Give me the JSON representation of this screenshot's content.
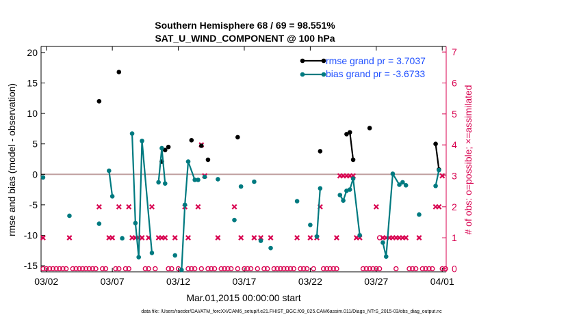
{
  "chart_data": {
    "type": "line",
    "title": "Southern Hemisphere 68 / 69 = 98.551%",
    "subtitle": "SAT_U_WIND_COMPONENT @ 100 hPa",
    "xlabel": "Mar.01,2015 00:00:00 start",
    "ylabel": "rmse and bias (model - observation)",
    "y2label": "# of obs: o=possible; ×=assimilated",
    "footer": "data file: /Users/raeder/DAI/ATM_forcXX/CAM6_setup/f.e21.FHIST_BGC.f09_025.CAM6assim.011/Diags_NTrS_2015-03/obs_diag_output.nc",
    "x_tick_labels": [
      "03/02",
      "03/07",
      "03/12",
      "03/17",
      "03/22",
      "03/27",
      "04/01"
    ],
    "x_tick_days": [
      1,
      6,
      11,
      16,
      21,
      26,
      31
    ],
    "xlim": [
      0.6,
      31.3
    ],
    "ylim": [
      -16,
      21
    ],
    "y_ticks": [
      -15,
      -10,
      -5,
      0,
      5,
      10,
      15,
      20
    ],
    "y2lim": [
      -0.1,
      7.18
    ],
    "y2_ticks": [
      0,
      1,
      2,
      3,
      4,
      5,
      6,
      7
    ],
    "grid": false,
    "legend_position": "top-right",
    "zero_line": 0,
    "colors": {
      "rmse": "#000000",
      "bias": "#007a80",
      "obs": "#d8004f",
      "zero_line": "#c0a0a0",
      "legend_text": "#1f4fff"
    },
    "series": [
      {
        "name": "rmse grand pr = 3.7037",
        "role": "rmse",
        "points": [
          [
            5.0,
            12.0
          ],
          [
            6.5,
            16.8
          ],
          [
            9.75,
            2.1
          ],
          [
            10.0,
            4.0
          ],
          [
            10.25,
            4.5
          ],
          [
            12.0,
            5.6
          ],
          [
            12.75,
            4.7
          ],
          [
            13.25,
            2.4
          ],
          [
            15.5,
            6.1
          ],
          [
            21.75,
            3.8
          ],
          [
            23.75,
            6.6
          ],
          [
            24.0,
            6.9
          ],
          [
            24.25,
            2.4
          ],
          [
            25.5,
            7.6
          ],
          [
            30.5,
            5.0
          ],
          [
            30.75,
            0.8
          ]
        ],
        "segments": [
          [
            [
              23.75,
              6.6
            ],
            [
              24.0,
              6.9
            ],
            [
              24.25,
              2.4
            ]
          ],
          [
            [
              30.5,
              5.0
            ],
            [
              30.75,
              0.8
            ]
          ]
        ]
      },
      {
        "name": "bias grand pr = -3.6733",
        "role": "bias",
        "points": [
          [
            0.75,
            -0.5
          ],
          [
            2.75,
            -6.8
          ],
          [
            5.0,
            -8.1
          ],
          [
            5.75,
            0.6
          ],
          [
            6.0,
            -3.6
          ],
          [
            6.75,
            -10.5
          ],
          [
            7.5,
            6.7
          ],
          [
            7.75,
            -8.0
          ],
          [
            8.0,
            -13.6
          ],
          [
            8.25,
            5.5
          ],
          [
            9.0,
            -12.9
          ],
          [
            9.5,
            -1.3
          ],
          [
            9.75,
            4.3
          ],
          [
            10.0,
            -1.5
          ],
          [
            10.75,
            -13.3
          ],
          [
            11.25,
            -15.7
          ],
          [
            11.5,
            -5.0
          ],
          [
            11.75,
            2.1
          ],
          [
            12.25,
            -0.9
          ],
          [
            12.5,
            -0.9
          ],
          [
            13.0,
            -0.4
          ],
          [
            14.0,
            -0.8
          ],
          [
            15.25,
            -7.5
          ],
          [
            15.75,
            -2.0
          ],
          [
            16.75,
            -1.2
          ],
          [
            17.25,
            -10.9
          ],
          [
            18.0,
            -12.1
          ],
          [
            20.0,
            -4.4
          ],
          [
            21.0,
            -8.3
          ],
          [
            21.5,
            -10.2
          ],
          [
            21.75,
            -2.3
          ],
          [
            23.25,
            -3.4
          ],
          [
            23.5,
            -4.3
          ],
          [
            23.75,
            -2.7
          ],
          [
            24.0,
            -2.5
          ],
          [
            24.25,
            -0.7
          ],
          [
            24.75,
            -10.0
          ],
          [
            26.5,
            -11.2
          ],
          [
            26.75,
            -13.5
          ],
          [
            27.25,
            0.1
          ],
          [
            27.75,
            -1.7
          ],
          [
            28.0,
            -1.3
          ],
          [
            28.25,
            -1.8
          ],
          [
            29.25,
            -6.6
          ],
          [
            30.5,
            -1.9
          ],
          [
            30.75,
            0.7
          ]
        ],
        "segments": [
          [
            [
              5.75,
              0.6
            ],
            [
              6.0,
              -3.6
            ]
          ],
          [
            [
              7.5,
              6.7
            ],
            [
              7.75,
              -8.0
            ],
            [
              8.0,
              -13.6
            ],
            [
              8.25,
              5.5
            ],
            [
              9.0,
              -12.9
            ]
          ],
          [
            [
              9.5,
              -1.3
            ],
            [
              9.75,
              4.3
            ],
            [
              10.0,
              -1.5
            ]
          ],
          [
            [
              11.25,
              -15.7
            ],
            [
              11.5,
              -5.0
            ],
            [
              11.75,
              2.1
            ],
            [
              12.25,
              -0.9
            ],
            [
              12.5,
              -0.9
            ]
          ],
          [
            [
              21.5,
              -10.2
            ],
            [
              21.75,
              -2.3
            ]
          ],
          [
            [
              23.25,
              -3.4
            ],
            [
              23.5,
              -4.3
            ],
            [
              23.75,
              -2.7
            ],
            [
              24.0,
              -2.5
            ],
            [
              24.25,
              -0.7
            ],
            [
              24.75,
              -10.0
            ]
          ],
          [
            [
              26.5,
              -11.2
            ],
            [
              26.75,
              -13.5
            ],
            [
              27.25,
              0.1
            ],
            [
              27.75,
              -1.7
            ],
            [
              28.0,
              -1.3
            ],
            [
              28.25,
              -1.8
            ]
          ],
          [
            [
              30.5,
              -1.9
            ],
            [
              30.75,
              0.7
            ]
          ]
        ]
      }
    ],
    "obs_possible": [
      [
        0.75,
        0
      ],
      [
        1.0,
        0
      ],
      [
        1.25,
        0
      ],
      [
        1.5,
        0
      ],
      [
        1.75,
        0
      ],
      [
        2.0,
        0
      ],
      [
        2.25,
        0
      ],
      [
        2.5,
        0
      ],
      [
        3.0,
        0
      ],
      [
        3.25,
        0
      ],
      [
        3.5,
        0
      ],
      [
        3.75,
        0
      ],
      [
        4.0,
        0
      ],
      [
        4.25,
        0
      ],
      [
        4.5,
        0
      ],
      [
        4.75,
        0
      ],
      [
        5.25,
        0
      ],
      [
        5.5,
        0
      ],
      [
        6.25,
        0
      ],
      [
        6.5,
        0
      ],
      [
        7.0,
        0
      ],
      [
        7.25,
        0
      ],
      [
        8.5,
        0
      ],
      [
        8.75,
        0
      ],
      [
        9.25,
        0
      ],
      [
        10.25,
        0
      ],
      [
        10.5,
        0
      ],
      [
        11.0,
        0
      ],
      [
        11.75,
        0
      ],
      [
        12.0,
        0
      ],
      [
        12.25,
        0
      ],
      [
        12.75,
        0
      ],
      [
        13.25,
        0
      ],
      [
        13.5,
        0
      ],
      [
        13.75,
        0
      ],
      [
        14.25,
        0
      ],
      [
        14.5,
        0
      ],
      [
        14.75,
        0
      ],
      [
        15.0,
        0
      ],
      [
        15.5,
        0
      ],
      [
        16.0,
        0
      ],
      [
        16.25,
        0
      ],
      [
        16.5,
        0
      ],
      [
        17.0,
        0
      ],
      [
        17.5,
        0
      ],
      [
        17.75,
        0
      ],
      [
        18.25,
        0
      ],
      [
        18.5,
        0
      ],
      [
        18.75,
        0
      ],
      [
        19.0,
        0
      ],
      [
        19.25,
        0
      ],
      [
        19.5,
        0
      ],
      [
        19.75,
        0
      ],
      [
        20.25,
        0
      ],
      [
        20.5,
        0
      ],
      [
        20.75,
        0
      ],
      [
        21.25,
        0
      ],
      [
        22.0,
        0
      ],
      [
        22.25,
        0
      ],
      [
        22.5,
        0
      ],
      [
        22.75,
        0
      ],
      [
        23.0,
        0
      ],
      [
        25.0,
        0
      ],
      [
        25.25,
        0
      ],
      [
        25.5,
        0
      ],
      [
        25.75,
        0
      ],
      [
        26.0,
        0
      ],
      [
        26.25,
        0
      ],
      [
        27.5,
        0
      ],
      [
        28.5,
        0
      ],
      [
        28.75,
        0
      ],
      [
        29.0,
        0
      ],
      [
        29.5,
        0
      ],
      [
        29.75,
        0
      ],
      [
        30.0,
        0
      ],
      [
        30.25,
        0
      ],
      [
        31.0,
        0
      ],
      [
        31.25,
        0
      ],
      [
        26.25,
        1
      ]
    ],
    "obs_assimilated": [
      [
        0.75,
        1
      ],
      [
        2.75,
        1
      ],
      [
        5.0,
        2
      ],
      [
        5.75,
        1
      ],
      [
        6.0,
        1
      ],
      [
        6.5,
        2
      ],
      [
        7.25,
        2
      ],
      [
        7.5,
        1
      ],
      [
        7.75,
        1
      ],
      [
        8.0,
        1
      ],
      [
        8.25,
        1
      ],
      [
        8.75,
        1
      ],
      [
        9.0,
        2
      ],
      [
        9.5,
        1
      ],
      [
        9.75,
        1
      ],
      [
        10.0,
        1
      ],
      [
        10.75,
        1
      ],
      [
        11.5,
        2
      ],
      [
        11.75,
        1
      ],
      [
        12.5,
        2
      ],
      [
        12.75,
        4
      ],
      [
        13.0,
        3
      ],
      [
        14.0,
        1
      ],
      [
        15.25,
        2
      ],
      [
        15.75,
        1
      ],
      [
        16.75,
        1
      ],
      [
        17.25,
        1
      ],
      [
        18.0,
        1
      ],
      [
        20.0,
        1
      ],
      [
        21.0,
        1
      ],
      [
        21.5,
        1
      ],
      [
        21.75,
        2
      ],
      [
        23.0,
        1
      ],
      [
        23.25,
        3
      ],
      [
        23.5,
        3
      ],
      [
        23.75,
        3
      ],
      [
        24.0,
        3
      ],
      [
        24.25,
        3
      ],
      [
        24.5,
        1
      ],
      [
        24.75,
        1
      ],
      [
        26.0,
        2
      ],
      [
        26.5,
        1
      ],
      [
        26.75,
        1
      ],
      [
        27.0,
        1
      ],
      [
        27.25,
        1
      ],
      [
        27.5,
        1
      ],
      [
        27.75,
        1
      ],
      [
        28.0,
        1
      ],
      [
        28.25,
        1
      ],
      [
        29.25,
        1
      ],
      [
        30.5,
        2
      ],
      [
        30.75,
        2
      ],
      [
        31.0,
        3
      ]
    ]
  }
}
